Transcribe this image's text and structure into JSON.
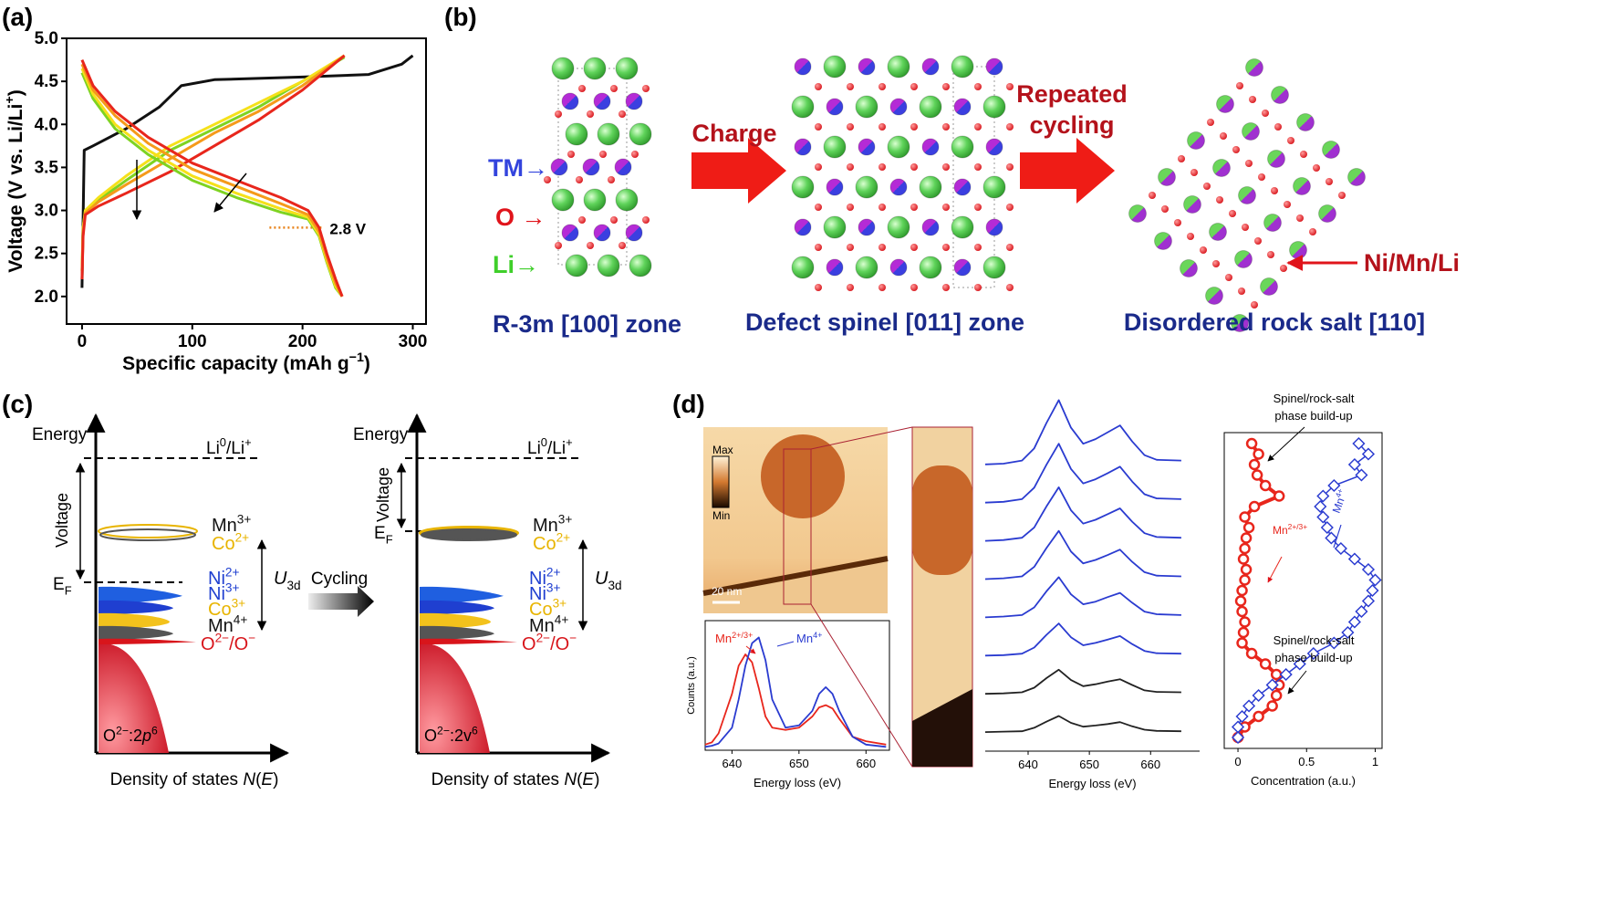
{
  "panels": {
    "a": "(a)",
    "b": "(b)",
    "c": "(c)",
    "d": "(d)"
  },
  "chart_data": [
    {
      "type": "line",
      "x_label": [
        {
          "t": "Specific capacity (mAh g"
        },
        {
          "sup": "−1"
        },
        {
          "t": ")"
        }
      ],
      "y_label": [
        {
          "t": "Voltage (V vs. Li/Li"
        },
        {
          "sup": "+"
        },
        {
          "t": ")"
        }
      ],
      "xlim": [
        -14,
        312
      ],
      "ylim": [
        1.68,
        5.0
      ],
      "xticks": [
        0,
        100,
        200,
        300
      ],
      "yticks": [
        {
          "value": 2.0,
          "label": "2.0"
        },
        {
          "value": 2.5,
          "label": "2.5"
        },
        {
          "value": 3.0,
          "label": "3.0"
        },
        {
          "value": 3.5,
          "label": "3.5"
        },
        {
          "value": 4.0,
          "label": "4.0"
        },
        {
          "value": 4.5,
          "label": "4.5"
        },
        {
          "value": 5.0,
          "label": "5.0"
        }
      ],
      "frame": true,
      "series": [
        {
          "color": "#111111",
          "x": [
            0,
            2,
            10,
            40,
            70,
            90,
            120,
            200,
            260,
            290,
            300
          ],
          "values": [
            2.1,
            3.7,
            3.75,
            3.95,
            4.2,
            4.45,
            4.52,
            4.55,
            4.58,
            4.7,
            4.8
          ]
        },
        {
          "color": "#7ed321",
          "x": [
            0,
            1,
            3,
            15,
            40,
            80,
            120,
            160,
            200,
            238
          ],
          "values": [
            2.3,
            2.8,
            3.0,
            3.12,
            3.35,
            3.7,
            3.95,
            4.2,
            4.5,
            4.78
          ]
        },
        {
          "color": "#f5e11a",
          "x": [
            0,
            1,
            3,
            15,
            40,
            80,
            120,
            160,
            200,
            238
          ],
          "values": [
            2.3,
            2.8,
            3.0,
            3.15,
            3.4,
            3.75,
            4.0,
            4.25,
            4.5,
            4.8
          ]
        },
        {
          "color": "#f59a1a",
          "x": [
            0,
            1,
            3,
            15,
            40,
            80,
            120,
            160,
            200,
            238
          ],
          "values": [
            2.2,
            2.75,
            2.97,
            3.1,
            3.3,
            3.6,
            3.9,
            4.15,
            4.45,
            4.8
          ]
        },
        {
          "color": "#e8261c",
          "x": [
            0,
            1,
            3,
            15,
            40,
            80,
            120,
            160,
            200,
            238
          ],
          "values": [
            2.2,
            2.7,
            2.95,
            3.05,
            3.2,
            3.45,
            3.75,
            4.05,
            4.4,
            4.8
          ]
        },
        {
          "color": "#7ed321",
          "x": [
            0,
            10,
            30,
            60,
            100,
            140,
            180,
            205,
            215,
            222,
            230,
            236
          ],
          "values": [
            4.6,
            4.3,
            3.95,
            3.65,
            3.35,
            3.15,
            2.98,
            2.9,
            2.7,
            2.4,
            2.1,
            2.0
          ]
        },
        {
          "color": "#f5e11a",
          "x": [
            0,
            10,
            30,
            60,
            100,
            140,
            180,
            205,
            215,
            222,
            230,
            236
          ],
          "values": [
            4.65,
            4.35,
            4.0,
            3.7,
            3.4,
            3.2,
            3.02,
            2.92,
            2.72,
            2.42,
            2.12,
            2.0
          ]
        },
        {
          "color": "#f59a1a",
          "x": [
            0,
            10,
            30,
            60,
            100,
            140,
            180,
            205,
            215,
            222,
            230,
            236
          ],
          "values": [
            4.7,
            4.4,
            4.1,
            3.78,
            3.48,
            3.28,
            3.08,
            2.95,
            2.75,
            2.45,
            2.15,
            2.0
          ]
        },
        {
          "color": "#e8261c",
          "x": [
            0,
            10,
            30,
            60,
            100,
            140,
            180,
            205,
            215,
            222,
            230,
            236
          ],
          "values": [
            4.75,
            4.45,
            4.15,
            3.85,
            3.55,
            3.35,
            3.15,
            3.0,
            2.8,
            2.5,
            2.2,
            2.0
          ]
        }
      ],
      "guide": {
        "y": 2.8,
        "x": [
          170,
          218
        ],
        "color": "#e8821a"
      },
      "annotation": "2.8 V"
    },
    {
      "type": "line",
      "x_label": "Energy loss (eV)",
      "y_label": "Counts (a.u.)",
      "xlim": [
        636,
        663.5
      ],
      "ylim": [
        0,
        1.15
      ],
      "xticks": [
        640,
        650,
        660
      ],
      "frame": true,
      "x": [
        636,
        637,
        638,
        640,
        641,
        642,
        643,
        644,
        645,
        646,
        648,
        650,
        652,
        653,
        654,
        655,
        656,
        658,
        660,
        663
      ],
      "series": [
        {
          "name": "Mn2+/3+",
          "color": "#e8261c",
          "values": [
            0.05,
            0.07,
            0.15,
            0.5,
            0.75,
            0.85,
            0.78,
            0.55,
            0.3,
            0.2,
            0.18,
            0.2,
            0.3,
            0.38,
            0.4,
            0.37,
            0.28,
            0.12,
            0.08,
            0.05
          ]
        },
        {
          "name": "Mn4+",
          "color": "#2a3bd0",
          "values": [
            0.03,
            0.04,
            0.06,
            0.2,
            0.45,
            0.75,
            0.95,
            1.0,
            0.8,
            0.45,
            0.2,
            0.22,
            0.35,
            0.5,
            0.56,
            0.5,
            0.35,
            0.12,
            0.05,
            0.03
          ]
        }
      ]
    },
    {
      "type": "line",
      "x_label": "Energy loss (eV)",
      "xlim": [
        633,
        668
      ],
      "ylim": [
        -0.5,
        9
      ],
      "xticks": [
        640,
        650,
        660
      ],
      "frame": false,
      "x": [
        633,
        636,
        639,
        641,
        643,
        645,
        647,
        649,
        651,
        653,
        655,
        657,
        659,
        661,
        665
      ],
      "series": [
        {
          "color": "#222222",
          "values": [
            0,
            0.01,
            0.02,
            0.11,
            0.27,
            0.42,
            0.24,
            0.14,
            0.17,
            0.21,
            0.26,
            0.15,
            0.06,
            0.03,
            0.02
          ]
        },
        {
          "color": "#222222",
          "values": [
            1,
            1.01,
            1.04,
            1.16,
            1.41,
            1.63,
            1.36,
            1.2,
            1.25,
            1.32,
            1.38,
            1.23,
            1.09,
            1.05,
            1.04
          ]
        },
        {
          "color": "#2a3bd0",
          "values": [
            2,
            2.01,
            2.05,
            2.21,
            2.54,
            2.84,
            2.48,
            2.27,
            2.33,
            2.42,
            2.51,
            2.3,
            2.12,
            2.06,
            2.05
          ]
        },
        {
          "color": "#2a3bd0",
          "values": [
            3,
            3.02,
            3.06,
            3.26,
            3.68,
            4.05,
            3.6,
            3.34,
            3.41,
            3.53,
            3.64,
            3.38,
            3.15,
            3.08,
            3.06
          ]
        },
        {
          "color": "#2a3bd0",
          "values": [
            4,
            4.02,
            4.07,
            4.32,
            4.81,
            5.26,
            4.72,
            4.41,
            4.5,
            4.63,
            4.77,
            4.45,
            4.18,
            4.09,
            4.07
          ]
        },
        {
          "color": "#2a3bd0",
          "values": [
            5,
            5.02,
            5.08,
            5.35,
            5.9,
            6.4,
            5.8,
            5.45,
            5.55,
            5.7,
            5.85,
            5.5,
            5.2,
            5.1,
            5.08
          ]
        },
        {
          "color": "#2a3bd0",
          "values": [
            6,
            6.02,
            6.09,
            6.39,
            6.99,
            7.54,
            6.88,
            6.5,
            6.61,
            6.77,
            6.94,
            6.55,
            6.22,
            6.11,
            6.09
          ]
        },
        {
          "color": "#2a3bd0",
          "values": [
            7,
            7.02,
            7.1,
            7.42,
            8.08,
            8.68,
            7.96,
            7.54,
            7.66,
            7.84,
            8.02,
            7.6,
            7.24,
            7.12,
            7.1
          ]
        }
      ]
    },
    {
      "type": "profile",
      "x_label": "Concentration (a.u.)",
      "xlim": [
        -0.1,
        1.05
      ],
      "xticks": [
        0,
        0.5,
        1
      ],
      "frame": true,
      "series": [
        {
          "name": "Mn2+/3+",
          "color": "#e8261c",
          "marker": "circle",
          "values": [
            0.1,
            0.15,
            0.12,
            0.14,
            0.2,
            0.3,
            0.12,
            0.05,
            0.08,
            0.06,
            0.05,
            0.04,
            0.06,
            0.05,
            0.03,
            0.02,
            0.03,
            0.05,
            0.04,
            0.03,
            0.1,
            0.2,
            0.28,
            0.3,
            0.28,
            0.25,
            0.15,
            0.05,
            0.0
          ]
        },
        {
          "name": "Mn4+",
          "color": "#2a3bd0",
          "marker": "diamond",
          "values": [
            0.88,
            0.95,
            0.85,
            0.9,
            0.7,
            0.62,
            0.6,
            0.62,
            0.65,
            0.68,
            0.75,
            0.85,
            0.95,
            1.0,
            0.98,
            0.95,
            0.9,
            0.85,
            0.8,
            0.7,
            0.55,
            0.45,
            0.35,
            0.25,
            0.15,
            0.08,
            0.03,
            0.0,
            0.0
          ]
        }
      ],
      "annotations": [
        [
          "Spinel/rock-salt",
          "phase build-up"
        ],
        [
          "Spinel/rock-salt",
          "phase build-up"
        ]
      ]
    }
  ],
  "b": {
    "charge": "Charge",
    "repeated": [
      "Repeated",
      "cycling"
    ],
    "tm": "TM→",
    "o": "O →",
    "li": "Li→",
    "zone1": "R-3m [100] zone",
    "zone2": "Defect spinel [011] zone",
    "zone3": "Disordered rock salt [110]",
    "mixed": "Ni/Mn/Li"
  },
  "c": {
    "cycling": "Cycling",
    "left": {
      "energy": "Energy",
      "li": [
        {
          "t": "Li"
        },
        {
          "sup": "0"
        },
        {
          "t": "/Li"
        },
        {
          "sup": "+"
        }
      ],
      "voltage": "Voltage",
      "ef": [
        {
          "t": "E"
        },
        {
          "sub": "F"
        }
      ],
      "levels": [
        {
          "label": [
            {
              "t": "Mn"
            },
            {
              "sup": "3+"
            }
          ],
          "color": "#111111"
        },
        {
          "label": [
            {
              "t": "Co"
            },
            {
              "sup": "2+"
            }
          ],
          "color": "#e8b400"
        },
        {
          "label": [
            {
              "t": "Ni"
            },
            {
              "sup": "2+"
            }
          ],
          "color": "#1f3fd0"
        },
        {
          "label": [
            {
              "t": "Ni"
            },
            {
              "sup": "3+"
            }
          ],
          "color": "#1f3fd0"
        },
        {
          "label": [
            {
              "t": "Co"
            },
            {
              "sup": "3+"
            }
          ],
          "color": "#e8b400"
        },
        {
          "label": [
            {
              "t": "Mn"
            },
            {
              "sup": "4+"
            }
          ],
          "color": "#111111"
        },
        {
          "label": [
            {
              "t": "O"
            },
            {
              "sup": "2−"
            },
            {
              "t": "/O"
            },
            {
              "sup": "−"
            }
          ],
          "color": "#d8151b"
        }
      ],
      "u": [
        {
          "i": "U"
        },
        {
          "sub": "3d"
        }
      ],
      "band": [
        {
          "t": "O"
        },
        {
          "sup": "2−"
        },
        {
          "t": ":2"
        },
        {
          "i": "p"
        },
        {
          "sup": "6"
        }
      ],
      "dos": [
        {
          "t": "Density of states "
        },
        {
          "i": "N"
        },
        {
          "t": "("
        },
        {
          "i": "E"
        },
        {
          "t": ")"
        }
      ]
    },
    "right": {
      "energy": "Energy",
      "li": [
        {
          "t": "Li"
        },
        {
          "sup": "0"
        },
        {
          "t": "/Li"
        },
        {
          "sup": "+"
        }
      ],
      "voltage": "Voltage",
      "ef": [
        {
          "t": "E"
        },
        {
          "sub": "F"
        }
      ],
      "levels": [
        {
          "label": [
            {
              "t": "Mn"
            },
            {
              "sup": "3+"
            }
          ],
          "color": "#111111"
        },
        {
          "label": [
            {
              "t": "Co"
            },
            {
              "sup": "2+"
            }
          ],
          "color": "#e8b400"
        },
        {
          "label": [
            {
              "t": "Ni"
            },
            {
              "sup": "2+"
            }
          ],
          "color": "#1f3fd0"
        },
        {
          "label": [
            {
              "t": "Ni"
            },
            {
              "sup": "3+"
            }
          ],
          "color": "#1f3fd0"
        },
        {
          "label": [
            {
              "t": "Co"
            },
            {
              "sup": "3+"
            }
          ],
          "color": "#e8b400"
        },
        {
          "label": [
            {
              "t": "Mn"
            },
            {
              "sup": "4+"
            }
          ],
          "color": "#111111"
        },
        {
          "label": [
            {
              "t": "O"
            },
            {
              "sup": "2−"
            },
            {
              "t": "/O"
            },
            {
              "sup": "−"
            }
          ],
          "color": "#d8151b"
        }
      ],
      "u": [
        {
          "i": "U"
        },
        {
          "sub": "3d"
        }
      ],
      "band": [
        {
          "t": "O"
        },
        {
          "sup": "2−"
        },
        {
          "t": ":2v"
        },
        {
          "sup": "6"
        }
      ],
      "dos": [
        {
          "t": "Density of states "
        },
        {
          "i": "N"
        },
        {
          "t": "("
        },
        {
          "i": "E"
        },
        {
          "t": ")"
        }
      ]
    }
  },
  "d": {
    "max": "Max",
    "min": "Min",
    "scale": "20 nm"
  }
}
